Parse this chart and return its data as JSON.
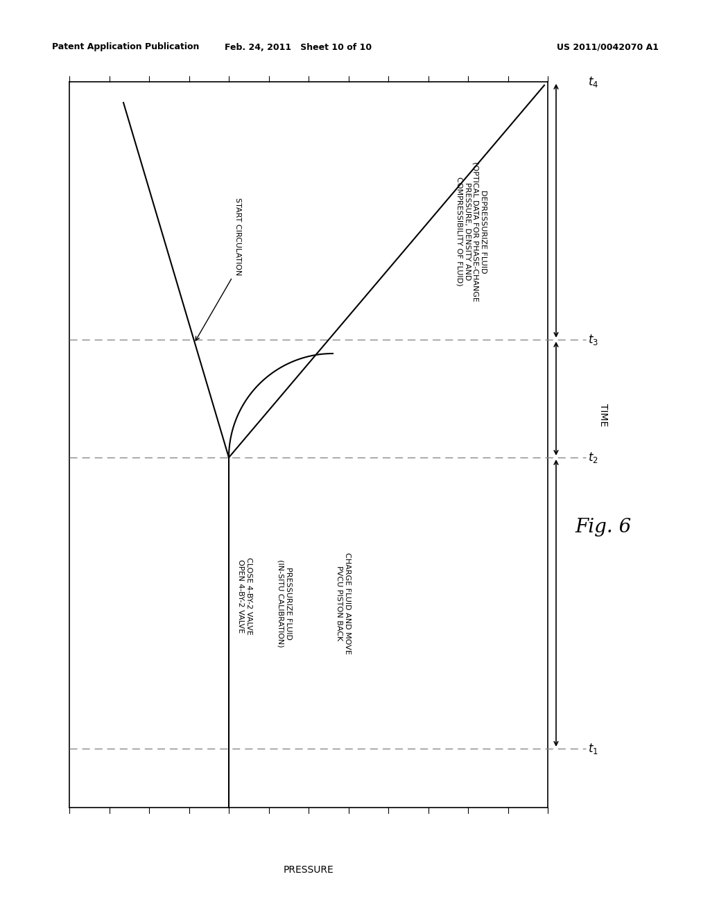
{
  "header_left": "Patent Application Publication",
  "header_middle": "Feb. 24, 2011   Sheet 10 of 10",
  "header_right": "US 2011/0042070 A1",
  "xlabel": "PRESSURE",
  "ylabel": "TIME",
  "fig_label": "Fig. 6",
  "time_labels": [
    "t1",
    "t2",
    "t3",
    "t4"
  ],
  "annotations": {
    "start_circulation": "START CIRCULATION",
    "close_valve": "CLOSE 4-BY-2 VALVE\nOPEN 4-BY-2 VALVE",
    "pressurize": "PRESSURIZE FLUID\n(IN-SITU CALIBRATION)",
    "charge_fluid": "CHARGE FLUID AND MOVE\nPVCU PISTON BACK",
    "depressurize": "DEPRESSURIZE FLUID\n(OPTICAL DATA FOR PHASE-CHANGE\nPRESSURE, DENSITY AND\nCOMPRESSIBILITY OF FLUID)"
  },
  "background_color": "#ffffff",
  "line_color": "#000000",
  "dashed_color": "#888888",
  "font_size_header": 9,
  "font_size_label": 10,
  "font_size_annotation": 8,
  "font_size_time": 12,
  "font_size_fig": 20
}
